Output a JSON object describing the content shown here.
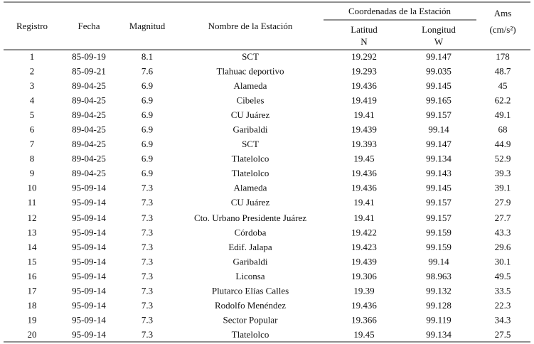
{
  "table": {
    "header": {
      "registro": "Registro",
      "fecha": "Fecha",
      "magnitud": "Magnitud",
      "nombre": "Nombre de la Estación",
      "coordenadas": "Coordenadas de la Estación",
      "latitud": "Latitud",
      "latitud_unit": "N",
      "longitud": "Longitud",
      "longitud_unit": "W",
      "ams": "Ams",
      "ams_unit": "(cm/s²)"
    },
    "rows": [
      [
        "1",
        "85-09-19",
        "8.1",
        "SCT",
        "19.292",
        "99.147",
        "178"
      ],
      [
        "2",
        "85-09-21",
        "7.6",
        "Tlahuac deportivo",
        "19.293",
        "99.035",
        "48.7"
      ],
      [
        "3",
        "89-04-25",
        "6.9",
        "Alameda",
        "19.436",
        "99.145",
        "45"
      ],
      [
        "4",
        "89-04-25",
        "6.9",
        "Cibeles",
        "19.419",
        "99.165",
        "62.2"
      ],
      [
        "5",
        "89-04-25",
        "6.9",
        "CU Juárez",
        "19.41",
        "99.157",
        "49.1"
      ],
      [
        "6",
        "89-04-25",
        "6.9",
        "Garibaldi",
        "19.439",
        "99.14",
        "68"
      ],
      [
        "7",
        "89-04-25",
        "6.9",
        "SCT",
        "19.393",
        "99.147",
        "44.9"
      ],
      [
        "8",
        "89-04-25",
        "6.9",
        "Tlatelolco",
        "19.45",
        "99.134",
        "52.9"
      ],
      [
        "9",
        "89-04-25",
        "6.9",
        "Tlatelolco",
        "19.436",
        "99.143",
        "39.3"
      ],
      [
        "10",
        "95-09-14",
        "7.3",
        "Alameda",
        "19.436",
        "99.145",
        "39.1"
      ],
      [
        "11",
        "95-09-14",
        "7.3",
        "CU Juárez",
        "19.41",
        "99.157",
        "27.9"
      ],
      [
        "12",
        "95-09-14",
        "7.3",
        "Cto. Urbano Presidente Juárez",
        "19.41",
        "99.157",
        "27.7"
      ],
      [
        "13",
        "95-09-14",
        "7.3",
        "Córdoba",
        "19.422",
        "99.159",
        "43.3"
      ],
      [
        "14",
        "95-09-14",
        "7.3",
        "Edif. Jalapa",
        "19.423",
        "99.159",
        "29.6"
      ],
      [
        "15",
        "95-09-14",
        "7.3",
        "Garibaldi",
        "19.439",
        "99.14",
        "30.1"
      ],
      [
        "16",
        "95-09-14",
        "7.3",
        "Liconsa",
        "19.306",
        "98.963",
        "49.5"
      ],
      [
        "17",
        "95-09-14",
        "7.3",
        "Plutarco Elías Calles",
        "19.39",
        "99.132",
        "33.5"
      ],
      [
        "18",
        "95-09-14",
        "7.3",
        "Rodolfo Menéndez",
        "19.436",
        "99.128",
        "22.3"
      ],
      [
        "19",
        "95-09-14",
        "7.3",
        "Sector Popular",
        "19.366",
        "99.119",
        "34.3"
      ],
      [
        "20",
        "95-09-14",
        "7.3",
        "Tlatelolco",
        "19.45",
        "99.134",
        "27.5"
      ]
    ]
  }
}
